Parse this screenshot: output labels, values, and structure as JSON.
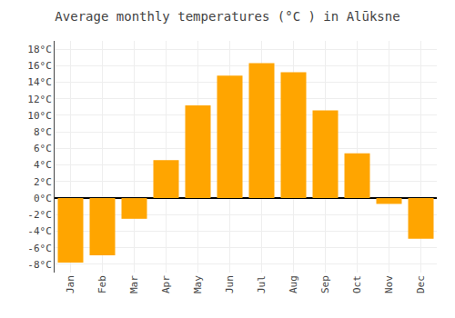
{
  "chart_data": {
    "type": "bar",
    "title": "Average monthly temperatures (°C ) in Alūksne",
    "categories": [
      "Jan",
      "Feb",
      "Mar",
      "Apr",
      "May",
      "Jun",
      "Jul",
      "Aug",
      "Sep",
      "Oct",
      "Nov",
      "Dec"
    ],
    "values": [
      -7.8,
      -6.9,
      -2.5,
      4.6,
      11.2,
      14.8,
      16.3,
      15.2,
      10.6,
      5.4,
      -0.7,
      -4.9
    ],
    "color": "#FFA500",
    "ylim": [
      -9,
      19
    ],
    "yticks": [
      {
        "value": -8,
        "label": "-8°C"
      },
      {
        "value": -6,
        "label": "-6°C"
      },
      {
        "value": -4,
        "label": "-4°C"
      },
      {
        "value": -2,
        "label": "-2°C"
      },
      {
        "value": 0,
        "label": "0°C"
      },
      {
        "value": 2,
        "label": "2°C"
      },
      {
        "value": 4,
        "label": "4°C"
      },
      {
        "value": 6,
        "label": "6°C"
      },
      {
        "value": 8,
        "label": "8°C"
      },
      {
        "value": 10,
        "label": "10°C"
      },
      {
        "value": 12,
        "label": "12°C"
      },
      {
        "value": 14,
        "label": "14°C"
      },
      {
        "value": 16,
        "label": "16°C"
      },
      {
        "value": 18,
        "label": "18°C"
      }
    ],
    "grid": true
  }
}
